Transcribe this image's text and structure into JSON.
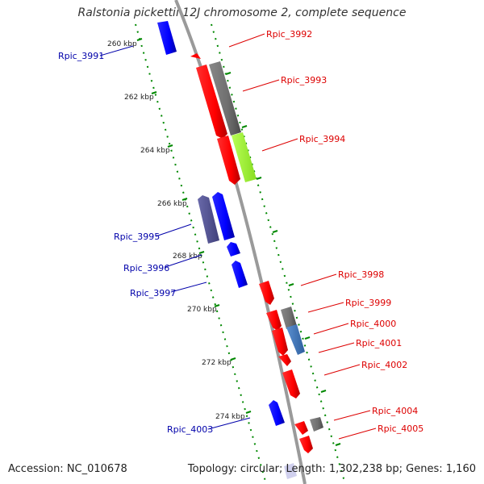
{
  "map": {
    "title": "Ralstonia pickettii 12J chromosome 2, complete sequence",
    "accession": "Accession: NC_010678",
    "summary": "Topology: circular; Length: 1,302,238 bp; Genes: 1,160"
  },
  "scale": {
    "ticks": [
      "260 kbp",
      "262 kbp",
      "264 kbp",
      "266 kbp",
      "268 kbp",
      "270 kbp",
      "272 kbp",
      "274 kbp"
    ]
  },
  "genes": {
    "forward": [
      "Rpic_3992",
      "Rpic_3993",
      "Rpic_3994",
      "Rpic_3998",
      "Rpic_3999",
      "Rpic_4000",
      "Rpic_4001",
      "Rpic_4002",
      "Rpic_4004",
      "Rpic_4005"
    ],
    "reverse": [
      "Rpic_3991",
      "Rpic_3995",
      "Rpic_3996",
      "Rpic_3997",
      "Rpic_4003"
    ]
  },
  "colors": {
    "backbone": "#9a9a9a",
    "forward_label": "#dd0000",
    "reverse_label": "#0000aa",
    "gene_red": "#ff0000",
    "gene_blue": "#0000ff",
    "gene_grey": "#6e6e6e",
    "gene_lime": "#99ee33",
    "gene_steel": "#4477bb",
    "gene_slate": "#555599",
    "tick_green": "#008800"
  }
}
